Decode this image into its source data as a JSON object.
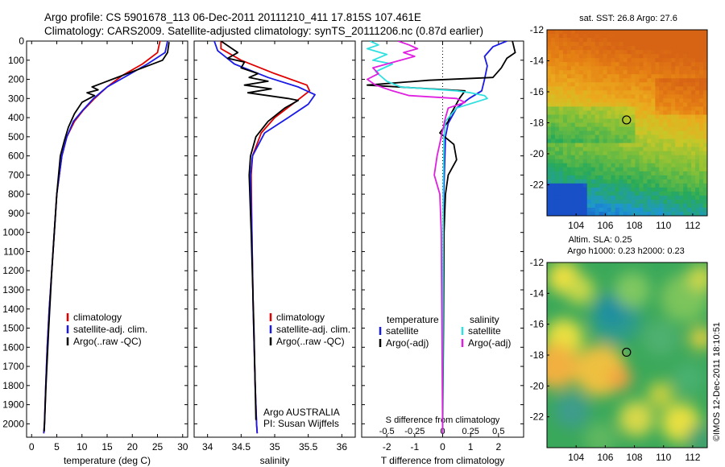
{
  "header": {
    "line1": "Argo profile: CS 5901678_113 06-Dec-2011 20111210_411 17.815S 107.461E",
    "line2": "Climatology: CARS2009. Satellite-adjusted climatology: synTS_20111206.nc (0.87d earlier)"
  },
  "colors": {
    "climatology": "#e00000",
    "satellite": "#1a1ae6",
    "argo": "#000000",
    "sat_salinity": "#30e0e0",
    "argo_salinity": "#e020e0"
  },
  "chart_data": [
    {
      "id": "temperature",
      "type": "line",
      "xlabel": "temperature (deg C)",
      "ylabel": "",
      "xlim": [
        -1,
        31
      ],
      "ylim": [
        2070,
        0
      ],
      "xticks": [
        0,
        5,
        10,
        15,
        20,
        25,
        30
      ],
      "yticks": [
        0,
        100,
        200,
        300,
        400,
        500,
        600,
        700,
        800,
        900,
        1000,
        1100,
        1200,
        1300,
        1400,
        1500,
        1600,
        1700,
        1800,
        1900,
        2000
      ],
      "legend": [
        "climatology",
        "satellite-adj. clim.",
        "Argo(..raw -QC)"
      ],
      "series": [
        {
          "name": "climatology",
          "color_key": "climatology",
          "x": [
            25.5,
            25.0,
            22,
            18,
            15,
            12.5,
            10.3,
            8.5,
            7.0,
            6.0,
            5.0,
            4.5,
            4.0,
            3.5,
            3.1,
            2.8,
            2.55,
            2.4
          ],
          "y": [
            0,
            60,
            120,
            180,
            240,
            300,
            360,
            420,
            500,
            600,
            800,
            1000,
            1200,
            1400,
            1600,
            1800,
            2000,
            2050
          ]
        },
        {
          "name": "satellite-adj. clim.",
          "color_key": "satellite",
          "x": [
            27.0,
            26.5,
            23,
            19,
            15,
            12.3,
            10.2,
            8.3,
            7.0,
            6.0,
            5.0,
            4.5,
            4.0,
            3.5,
            3.1,
            2.8,
            2.55,
            2.4
          ],
          "y": [
            0,
            60,
            120,
            180,
            240,
            300,
            360,
            420,
            500,
            600,
            800,
            1000,
            1200,
            1400,
            1600,
            1800,
            2000,
            2050
          ]
        },
        {
          "name": "Argo(..raw -QC)",
          "color_key": "argo",
          "x": [
            27.3,
            27.0,
            26.0,
            21.0,
            16.0,
            12.0,
            13.2,
            11.0,
            12.5,
            10.0,
            8.5,
            7.3,
            6.5,
            5.7,
            5.0,
            4.5,
            4.0,
            3.4,
            2.85,
            2.5
          ],
          "y": [
            5,
            60,
            100,
            150,
            200,
            240,
            255,
            270,
            285,
            320,
            380,
            450,
            520,
            600,
            800,
            1000,
            1200,
            1500,
            1800,
            2040
          ]
        }
      ],
      "text": []
    },
    {
      "id": "salinity",
      "type": "line",
      "xlabel": "salinity",
      "ylabel": "",
      "xlim": [
        33.8,
        36.2
      ],
      "ylim": [
        2070,
        0
      ],
      "xticks": [
        34,
        34.5,
        35,
        35.5,
        36
      ],
      "legend": [
        "climatology",
        "satellite-adj. clim.",
        "Argo(..raw -QC)"
      ],
      "series": [
        {
          "name": "climatology",
          "color_key": "climatology",
          "x": [
            34.2,
            34.2,
            34.5,
            35.0,
            35.48,
            35.52,
            35.3,
            35.0,
            34.8,
            34.67,
            34.65,
            34.66,
            34.68,
            34.71,
            34.73,
            34.74
          ],
          "y": [
            0,
            40,
            100,
            170,
            230,
            260,
            320,
            400,
            480,
            600,
            700,
            1000,
            1400,
            1800,
            2000,
            2050
          ]
        },
        {
          "name": "satellite-adj. clim.",
          "color_key": "satellite",
          "x": [
            34.1,
            34.15,
            34.4,
            34.9,
            35.35,
            35.6,
            35.5,
            35.2,
            34.85,
            34.67,
            34.64,
            34.66,
            34.68,
            34.71,
            34.73,
            34.74
          ],
          "y": [
            0,
            50,
            120,
            190,
            240,
            280,
            330,
            400,
            480,
            600,
            700,
            1000,
            1400,
            1800,
            2000,
            2050
          ]
        },
        {
          "name": "Argo(..raw -QC)",
          "color_key": "argo",
          "x": [
            34.2,
            34.45,
            34.3,
            34.55,
            34.5,
            34.75,
            34.62,
            34.9,
            34.55,
            34.95,
            34.6,
            35.2,
            35.35,
            35.15,
            34.9,
            34.72,
            34.64,
            34.62,
            34.65,
            34.69,
            34.72
          ],
          "y": [
            0,
            60,
            90,
            110,
            140,
            170,
            190,
            210,
            230,
            250,
            270,
            300,
            310,
            350,
            420,
            500,
            600,
            700,
            1000,
            1500,
            1980
          ]
        }
      ],
      "text": [
        "Argo AUSTRALIA",
        "PI: Susan Wijffels"
      ]
    },
    {
      "id": "differences",
      "type": "line",
      "xlabel_top": "S difference from climatology",
      "xlabel": "T difference from climatology",
      "xlim": [
        -2.9,
        2.9
      ],
      "ylim": [
        2070,
        0
      ],
      "xticks_T": [
        -2,
        -1,
        0,
        1,
        2
      ],
      "xticks_S": [
        -0.5,
        -0.25,
        0,
        0.25,
        0.5
      ],
      "legend_titles": [
        "temperature",
        "salinity"
      ],
      "legend": [
        "satellite",
        "Argo(-adj)",
        "satellite",
        "Argo(-adj)"
      ],
      "series": [
        {
          "name": "temperature satellite",
          "color_key": "satellite",
          "x": [
            2.3,
            1.8,
            1.5,
            1.6,
            1.5,
            1.4,
            0.95,
            0.5,
            0.2,
            0.1,
            0.08,
            0.04,
            0.02,
            0.01,
            0.0
          ],
          "y": [
            0,
            30,
            80,
            130,
            200,
            260,
            300,
            350,
            430,
            500,
            600,
            800,
            1200,
            1600,
            2050
          ]
        },
        {
          "name": "temperature Argo(-adj)",
          "color_key": "argo",
          "x": [
            2.5,
            2.6,
            2.3,
            2.1,
            1.8,
            -0.5,
            -2.7,
            0.8,
            0.6,
            0.3,
            0.2,
            -0.1,
            0.4,
            0.5,
            0.2,
            0.1,
            0.05,
            0.03,
            0.0
          ],
          "y": [
            0,
            60,
            90,
            140,
            190,
            205,
            230,
            260,
            300,
            380,
            420,
            480,
            540,
            620,
            700,
            800,
            1000,
            1500,
            2050
          ]
        },
        {
          "name": "salinity satellite",
          "color_key": "sat_salinity",
          "x": [
            -2.6,
            -2.3,
            -2.7,
            -2.0,
            -2.5,
            -1.8,
            -2.4,
            -2.0,
            -1.5,
            0.5,
            1.0,
            1.5,
            1.6,
            0.5,
            0.1,
            0.05,
            0.02,
            0.0
          ],
          "y": [
            0,
            20,
            40,
            70,
            100,
            120,
            160,
            210,
            240,
            260,
            270,
            285,
            300,
            350,
            420,
            500,
            800,
            2050
          ]
        },
        {
          "name": "salinity Argo(-adj)",
          "color_key": "argo_salinity",
          "x": [
            -1.6,
            -1.2,
            -0.9,
            -1.4,
            -1.0,
            -2.5,
            -2.3,
            -2.7,
            -2.4,
            -1.8,
            -1.2,
            0.5,
            0.8,
            0.2,
            0.1,
            -0.2,
            -0.3,
            -0.1,
            -0.05,
            0.0
          ],
          "y": [
            0,
            20,
            40,
            60,
            80,
            140,
            170,
            200,
            230,
            260,
            285,
            300,
            320,
            350,
            400,
            600,
            700,
            800,
            1000,
            2050
          ]
        }
      ]
    },
    {
      "id": "sst_map",
      "type": "heatmap",
      "title": "sat. SST: 26.8  Argo: 27.6",
      "xlim": [
        102,
        113
      ],
      "ylim": [
        -24,
        -12
      ],
      "xticks": [
        104,
        106,
        108,
        110,
        112
      ],
      "yticks": [
        -12,
        -14,
        -16,
        -18,
        -20,
        -22
      ],
      "marker": {
        "lon": 107.461,
        "lat": -17.815
      }
    },
    {
      "id": "sla_map",
      "type": "heatmap",
      "title": "Altim. SLA: 0.25",
      "subtitle": "Argo h1000: 0.23 h2000: 0.23",
      "xlim": [
        102,
        113
      ],
      "ylim": [
        -24,
        -12
      ],
      "xticks": [
        104,
        106,
        108,
        110,
        112
      ],
      "yticks": [
        -12,
        -14,
        -16,
        -18,
        -20,
        -22
      ],
      "marker": {
        "lon": 107.461,
        "lat": -17.815
      }
    }
  ],
  "stamp": "©IMOS 12-Dec-2011 18:10:51"
}
